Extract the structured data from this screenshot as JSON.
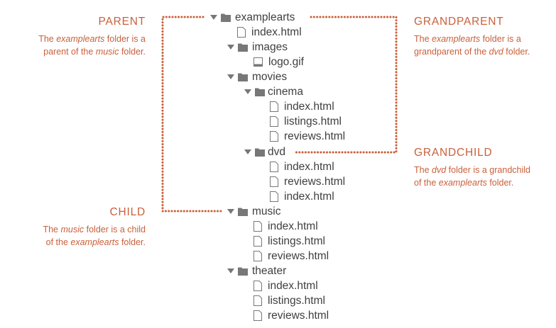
{
  "tree": [
    {
      "id": "examplearts",
      "label": "examplearts",
      "type": "folder"
    },
    {
      "id": "examplearts-index",
      "label": "index.html",
      "type": "file"
    },
    {
      "id": "images",
      "label": "images",
      "type": "folder"
    },
    {
      "id": "logo",
      "label": "logo.gif",
      "type": "image"
    },
    {
      "id": "movies",
      "label": "movies",
      "type": "folder"
    },
    {
      "id": "cinema",
      "label": "cinema",
      "type": "folder"
    },
    {
      "id": "cinema-index",
      "label": "index.html",
      "type": "file"
    },
    {
      "id": "cinema-listings",
      "label": "listings.html",
      "type": "file"
    },
    {
      "id": "cinema-reviews",
      "label": "reviews.html",
      "type": "file"
    },
    {
      "id": "dvd",
      "label": "dvd",
      "type": "folder"
    },
    {
      "id": "dvd-index",
      "label": "index.html",
      "type": "file"
    },
    {
      "id": "dvd-reviews",
      "label": "reviews.html",
      "type": "file"
    },
    {
      "id": "dvd-index-2",
      "label": "index.html",
      "type": "file"
    },
    {
      "id": "music",
      "label": "music",
      "type": "folder"
    },
    {
      "id": "music-index",
      "label": "index.html",
      "type": "file"
    },
    {
      "id": "music-listings",
      "label": "listings.html",
      "type": "file"
    },
    {
      "id": "music-reviews",
      "label": "reviews.html",
      "type": "file"
    },
    {
      "id": "theater",
      "label": "theater",
      "type": "folder"
    },
    {
      "id": "theater-index",
      "label": "index.html",
      "type": "file"
    },
    {
      "id": "theater-listings",
      "label": "listings.html",
      "type": "file"
    },
    {
      "id": "theater-reviews",
      "label": "reviews.html",
      "type": "file"
    }
  ],
  "annotations": {
    "parent": {
      "title": "PARENT",
      "desc_1": "The ",
      "desc_em1": "examplearts",
      "desc_2": " folder is a",
      "desc_3": "parent of the ",
      "desc_em2": "music",
      "desc_4": " folder."
    },
    "grandparent": {
      "title": "GRANDPARENT",
      "desc_1": "The ",
      "desc_em1": "examplearts",
      "desc_2": " folder is a",
      "desc_3": "grandparent of the ",
      "desc_em2": "dvd",
      "desc_4": " folder."
    },
    "grandchild": {
      "title": "GRANDCHILD",
      "desc_1": "The ",
      "desc_em1": "dvd",
      "desc_2": " folder is a grandchild",
      "desc_3": "of the ",
      "desc_em2": "examplearts",
      "desc_4": " folder."
    },
    "child": {
      "title": "CHILD",
      "desc_1": "The ",
      "desc_em1": "music",
      "desc_2": " folder is a child",
      "desc_3": "of the ",
      "desc_em2": "examplearts",
      "desc_4": " folder."
    }
  },
  "colors": {
    "accent": "#c9603b",
    "tree_text": "#3f3f3f",
    "icon": "#777777"
  }
}
